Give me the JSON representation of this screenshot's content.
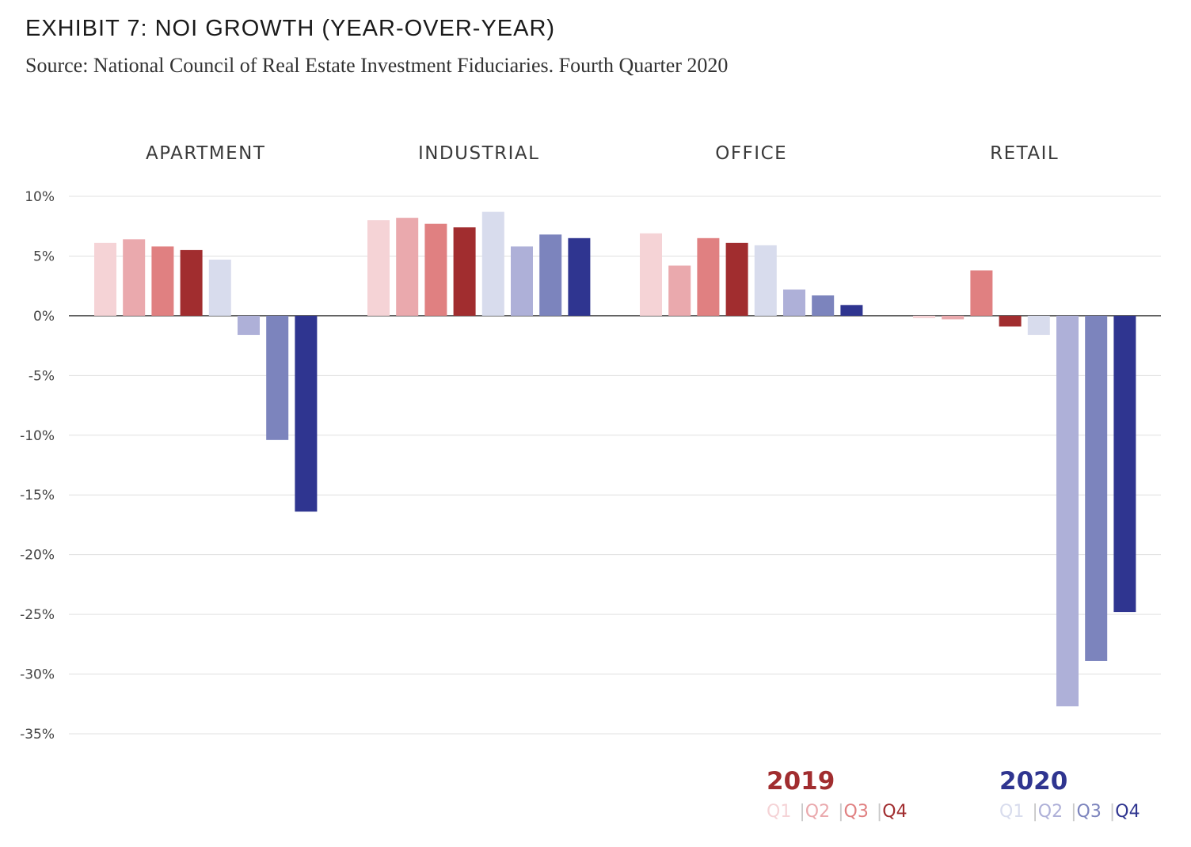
{
  "header": {
    "title": "EXHIBIT 7: NOI GROWTH (YEAR-OVER-YEAR)",
    "subtitle": "Source: National Council of Real Estate Investment Fiduciaries. Fourth Quarter 2020"
  },
  "chart_data": {
    "type": "bar",
    "categories": [
      "APARTMENT",
      "INDUSTRIAL",
      "OFFICE",
      "RETAIL"
    ],
    "series": [
      {
        "year": "2019",
        "quarter": "Q1",
        "color": "#f5d3d6",
        "values": [
          6.1,
          8.0,
          6.9,
          -0.2
        ]
      },
      {
        "year": "2019",
        "quarter": "Q2",
        "color": "#eaa9ad",
        "values": [
          6.4,
          8.2,
          4.2,
          -0.3
        ]
      },
      {
        "year": "2019",
        "quarter": "Q3",
        "color": "#e08081",
        "values": [
          5.8,
          7.7,
          6.5,
          3.8
        ]
      },
      {
        "year": "2019",
        "quarter": "Q4",
        "color": "#a12d2f",
        "values": [
          5.5,
          7.4,
          6.1,
          -0.9
        ]
      },
      {
        "year": "2020",
        "quarter": "Q1",
        "color": "#d8dced",
        "values": [
          4.7,
          8.7,
          5.9,
          -1.6
        ]
      },
      {
        "year": "2020",
        "quarter": "Q2",
        "color": "#aeb0d8",
        "values": [
          -1.6,
          5.8,
          2.2,
          -32.7
        ]
      },
      {
        "year": "2020",
        "quarter": "Q3",
        "color": "#7c84bd",
        "values": [
          -10.4,
          6.8,
          1.7,
          -28.9
        ]
      },
      {
        "year": "2020",
        "quarter": "Q4",
        "color": "#2f3590",
        "values": [
          -16.4,
          6.5,
          0.9,
          -24.8
        ]
      }
    ],
    "yticks": [
      "10%",
      "5%",
      "0%",
      "-5%",
      "-10%",
      "-15%",
      "-20%",
      "-25%",
      "-30%",
      "-35%"
    ],
    "ylim": [
      -35,
      10
    ],
    "grid": true,
    "legend": {
      "placement": "bottom-right",
      "groups": [
        {
          "year": "2019",
          "color": "#a12d2f",
          "quarters": [
            "Q1",
            "Q2",
            "Q3",
            "Q4"
          ],
          "separator": "|"
        },
        {
          "year": "2020",
          "color": "#2f3590",
          "quarters": [
            "Q1",
            "Q2",
            "Q3",
            "Q4"
          ],
          "separator": "|"
        }
      ]
    }
  }
}
